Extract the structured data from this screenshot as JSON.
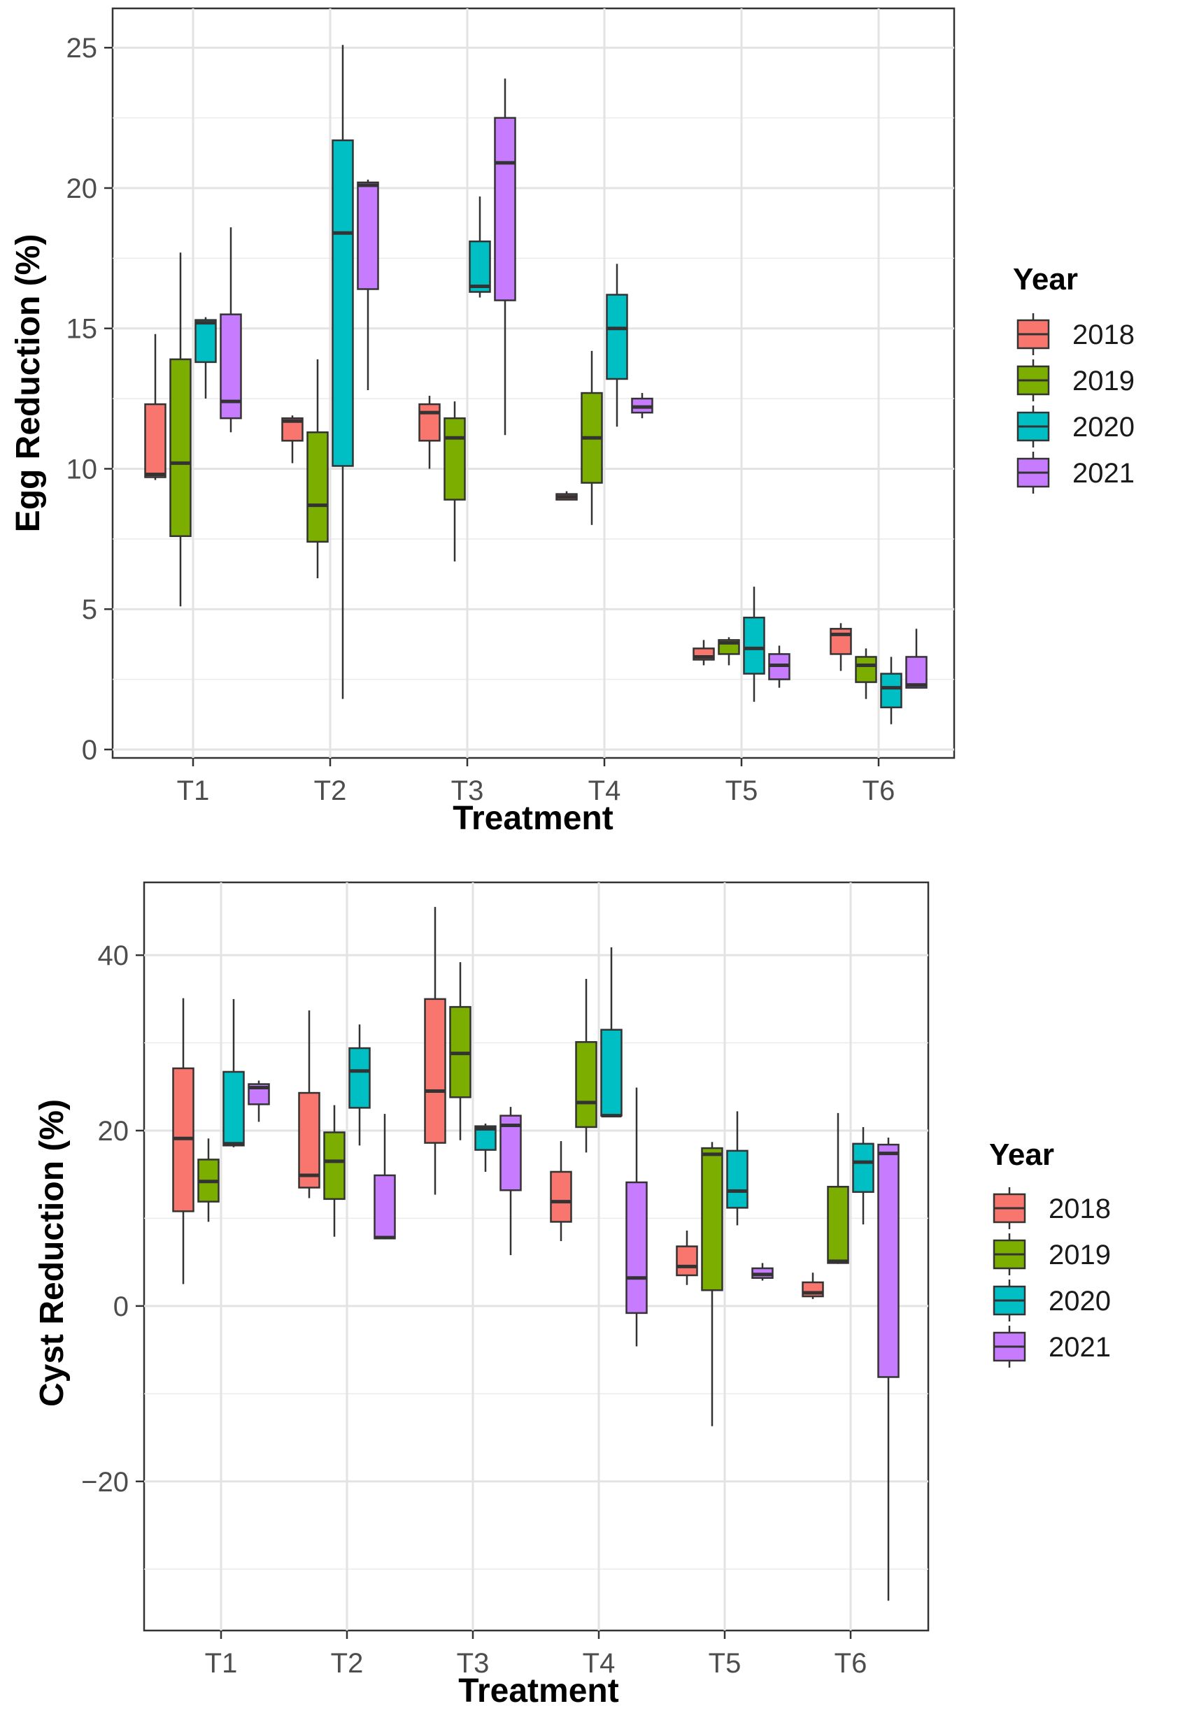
{
  "chart_data": [
    {
      "type": "boxplot",
      "xlabel": "Treatment",
      "ylabel": "Egg Reduction (%)",
      "ylim": [
        -0.3,
        26.4
      ],
      "yticks": [
        0,
        5,
        10,
        15,
        20,
        25
      ],
      "grid": true,
      "categories": [
        "T1",
        "T2",
        "T3",
        "T4",
        "T5",
        "T6"
      ],
      "legend": {
        "title": "Year",
        "placement": "right"
      },
      "series": [
        {
          "name": "2018",
          "color": "#F8766D",
          "boxes": [
            {
              "min": 9.6,
              "q1": 9.7,
              "median": 9.8,
              "q3": 12.3,
              "max": 14.8
            },
            {
              "min": 10.2,
              "q1": 11.0,
              "median": 11.7,
              "q3": 11.8,
              "max": 11.9
            },
            {
              "min": 10.0,
              "q1": 11.0,
              "median": 12.0,
              "q3": 12.3,
              "max": 12.6
            },
            {
              "min": 8.9,
              "q1": 8.9,
              "median": 9.0,
              "q3": 9.1,
              "max": 9.2
            },
            {
              "min": 3.0,
              "q1": 3.2,
              "median": 3.3,
              "q3": 3.6,
              "max": 3.9
            },
            {
              "min": 2.8,
              "q1": 3.4,
              "median": 4.1,
              "q3": 4.3,
              "max": 4.5
            }
          ]
        },
        {
          "name": "2019",
          "color": "#7CAE00",
          "boxes": [
            {
              "min": 5.1,
              "q1": 7.6,
              "median": 10.2,
              "q3": 13.9,
              "max": 17.7
            },
            {
              "min": 6.1,
              "q1": 7.4,
              "median": 8.7,
              "q3": 11.3,
              "max": 13.9
            },
            {
              "min": 6.7,
              "q1": 8.9,
              "median": 11.1,
              "q3": 11.8,
              "max": 12.4
            },
            {
              "min": 8.0,
              "q1": 9.5,
              "median": 11.1,
              "q3": 12.7,
              "max": 14.2
            },
            {
              "min": 3.0,
              "q1": 3.4,
              "median": 3.8,
              "q3": 3.9,
              "max": 4.0
            },
            {
              "min": 1.8,
              "q1": 2.4,
              "median": 3.0,
              "q3": 3.3,
              "max": 3.6
            }
          ]
        },
        {
          "name": "2020",
          "color": "#00BFC4",
          "boxes": [
            {
              "min": 12.5,
              "q1": 13.8,
              "median": 15.2,
              "q3": 15.3,
              "max": 15.4
            },
            {
              "min": 1.8,
              "q1": 10.1,
              "median": 18.4,
              "q3": 21.7,
              "max": 25.1
            },
            {
              "min": 16.1,
              "q1": 16.3,
              "median": 16.5,
              "q3": 18.1,
              "max": 19.7
            },
            {
              "min": 11.5,
              "q1": 13.2,
              "median": 15.0,
              "q3": 16.2,
              "max": 17.3
            },
            {
              "min": 1.7,
              "q1": 2.7,
              "median": 3.6,
              "q3": 4.7,
              "max": 5.8
            },
            {
              "min": 0.9,
              "q1": 1.5,
              "median": 2.2,
              "q3": 2.7,
              "max": 3.3
            }
          ]
        },
        {
          "name": "2021",
          "color": "#C77CFF",
          "boxes": [
            {
              "min": 11.3,
              "q1": 11.8,
              "median": 12.4,
              "q3": 15.5,
              "max": 18.6
            },
            {
              "min": 12.8,
              "q1": 16.4,
              "median": 20.1,
              "q3": 20.2,
              "max": 20.3
            },
            {
              "min": 11.2,
              "q1": 16.0,
              "median": 20.9,
              "q3": 22.5,
              "max": 23.9
            },
            {
              "min": 11.8,
              "q1": 12.0,
              "median": 12.2,
              "q3": 12.5,
              "max": 12.7
            },
            {
              "min": 2.2,
              "q1": 2.5,
              "median": 3.0,
              "q3": 3.4,
              "max": 3.7
            },
            {
              "min": 2.2,
              "q1": 2.2,
              "median": 2.3,
              "q3": 3.3,
              "max": 4.3
            }
          ]
        }
      ]
    },
    {
      "type": "boxplot",
      "xlabel": "Treatment",
      "ylabel": "Cyst Reduction (%)",
      "ylim": [
        -37.0,
        48.3
      ],
      "yticks": [
        -20,
        0,
        20,
        40
      ],
      "grid": true,
      "categories": [
        "T1",
        "T2",
        "T3",
        "T4",
        "T5",
        "T6"
      ],
      "legend": {
        "title": "Year",
        "placement": "right"
      },
      "series": [
        {
          "name": "2018",
          "color": "#F8766D",
          "boxes": [
            {
              "min": 2.5,
              "q1": 10.8,
              "median": 19.1,
              "q3": 27.1,
              "max": 35.1
            },
            {
              "min": 12.3,
              "q1": 13.5,
              "median": 14.9,
              "q3": 24.3,
              "max": 33.7
            },
            {
              "min": 12.7,
              "q1": 18.6,
              "median": 24.5,
              "q3": 35.0,
              "max": 45.5
            },
            {
              "min": 7.4,
              "q1": 9.6,
              "median": 11.9,
              "q3": 15.3,
              "max": 18.8
            },
            {
              "min": 2.4,
              "q1": 3.5,
              "median": 4.5,
              "q3": 6.8,
              "max": 8.6
            },
            {
              "min": 0.8,
              "q1": 1.1,
              "median": 1.5,
              "q3": 2.7,
              "max": 3.8
            }
          ]
        },
        {
          "name": "2019",
          "color": "#7CAE00",
          "boxes": [
            {
              "min": 9.6,
              "q1": 11.9,
              "median": 14.2,
              "q3": 16.7,
              "max": 19.1
            },
            {
              "min": 7.9,
              "q1": 12.2,
              "median": 16.5,
              "q3": 19.8,
              "max": 22.9
            },
            {
              "min": 18.9,
              "q1": 23.8,
              "median": 28.8,
              "q3": 34.1,
              "max": 39.2
            },
            {
              "min": 17.5,
              "q1": 20.4,
              "median": 23.2,
              "q3": 30.1,
              "max": 37.3
            },
            {
              "min": -13.7,
              "q1": 1.8,
              "median": 17.3,
              "q3": 18.0,
              "max": 18.7
            },
            {
              "min": 4.8,
              "q1": 4.9,
              "median": 5.1,
              "q3": 13.6,
              "max": 22.0
            }
          ]
        },
        {
          "name": "2020",
          "color": "#00BFC4",
          "boxes": [
            {
              "min": 18.1,
              "q1": 18.3,
              "median": 18.5,
              "q3": 26.7,
              "max": 35.0
            },
            {
              "min": 18.3,
              "q1": 22.6,
              "median": 26.8,
              "q3": 29.4,
              "max": 32.1
            },
            {
              "min": 15.3,
              "q1": 17.8,
              "median": 20.2,
              "q3": 20.5,
              "max": 20.8
            },
            {
              "min": 21.7,
              "q1": 21.7,
              "median": 21.7,
              "q3": 31.5,
              "max": 40.9
            },
            {
              "min": 9.2,
              "q1": 11.2,
              "median": 13.1,
              "q3": 17.7,
              "max": 22.2
            },
            {
              "min": 9.3,
              "q1": 13.0,
              "median": 16.4,
              "q3": 18.5,
              "max": 20.4
            }
          ]
        },
        {
          "name": "2021",
          "color": "#C77CFF",
          "boxes": [
            {
              "min": 21.0,
              "q1": 23.0,
              "median": 24.9,
              "q3": 25.3,
              "max": 25.7
            },
            {
              "min": 7.6,
              "q1": 7.7,
              "median": 7.8,
              "q3": 14.9,
              "max": 21.9
            },
            {
              "min": 5.8,
              "q1": 13.2,
              "median": 20.6,
              "q3": 21.7,
              "max": 22.7
            },
            {
              "min": -4.6,
              "q1": -0.8,
              "median": 3.2,
              "q3": 14.1,
              "max": 24.9
            },
            {
              "min": 2.9,
              "q1": 3.2,
              "median": 3.6,
              "q3": 4.3,
              "max": 4.9
            },
            {
              "min": -33.6,
              "q1": -8.1,
              "median": 17.4,
              "q3": 18.4,
              "max": 19.2
            }
          ]
        }
      ]
    }
  ]
}
